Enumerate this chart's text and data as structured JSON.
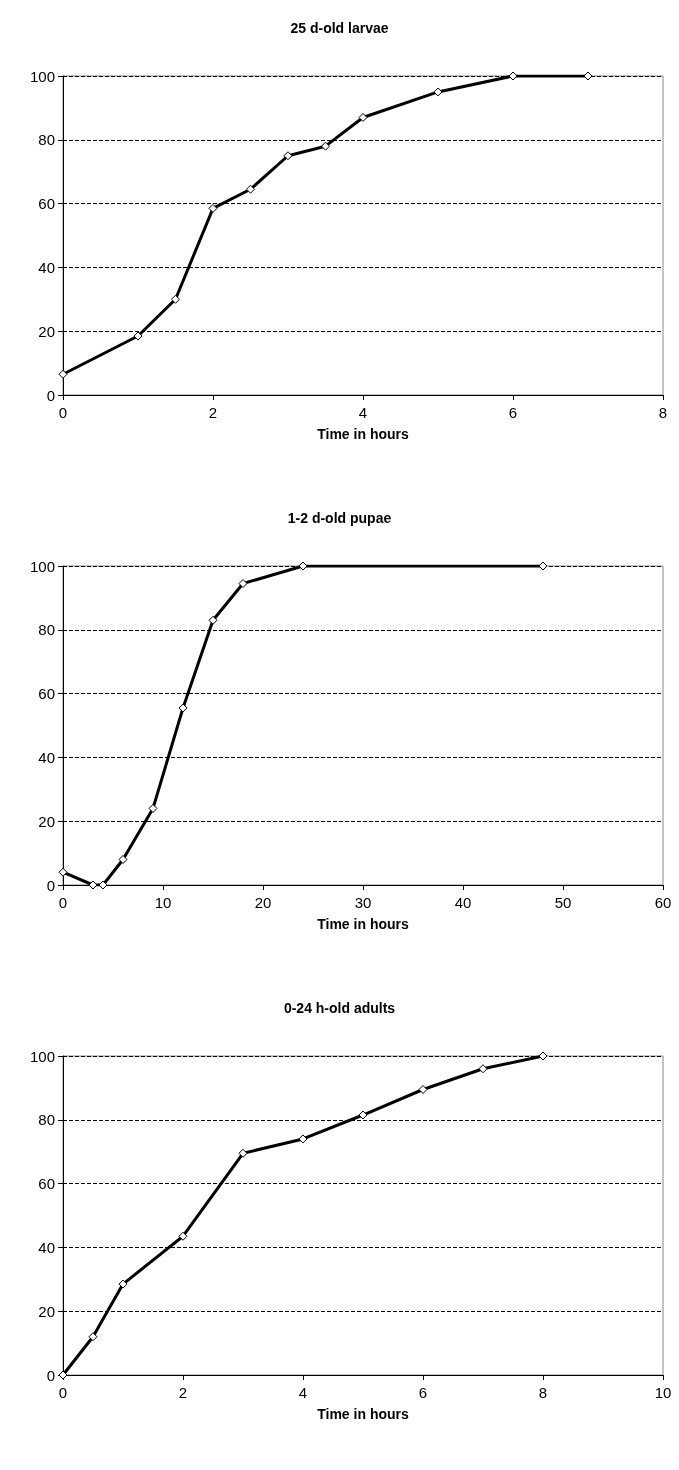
{
  "chart_data": [
    {
      "type": "line",
      "title": "25 d-old larvae",
      "xlabel": "Time in hours",
      "x": [
        0,
        1,
        1.5,
        2,
        2.5,
        3,
        3.5,
        4,
        5,
        6,
        7
      ],
      "series": [
        {
          "color": "#000000",
          "values": [
            6.5,
            18.5,
            30,
            58.5,
            64.5,
            75,
            78,
            87,
            95,
            100,
            100
          ]
        }
      ],
      "xlim": [
        0,
        8
      ],
      "xticks": [
        0,
        2,
        4,
        6,
        8
      ],
      "ylim": [
        0,
        100
      ],
      "yticks": [
        0,
        20,
        40,
        60,
        80,
        100
      ],
      "grid": "y",
      "marker": "diamond",
      "line_style": "solid"
    },
    {
      "type": "line",
      "title": "1-2 d-old pupae",
      "xlabel": "Time in hours",
      "x": [
        0,
        3,
        4,
        6,
        9,
        12,
        15,
        18,
        24,
        48
      ],
      "series": [
        {
          "color": "#000000",
          "values": [
            4,
            0,
            0,
            8,
            24,
            55.5,
            83,
            94.5,
            100,
            100
          ]
        }
      ],
      "xlim": [
        0,
        60
      ],
      "xticks": [
        0,
        10,
        20,
        30,
        40,
        50,
        60
      ],
      "ylim": [
        0,
        100
      ],
      "yticks": [
        0,
        20,
        40,
        60,
        80,
        100
      ],
      "grid": "y",
      "marker": "diamond",
      "line_style": "solid"
    },
    {
      "type": "line",
      "title": "0-24 h-old adults",
      "xlabel": "Time in hours",
      "x": [
        0,
        0.5,
        1,
        2,
        3,
        4,
        5,
        6,
        7,
        8
      ],
      "series": [
        {
          "color": "#000000",
          "values": [
            0,
            12,
            28.5,
            43.5,
            69.5,
            74,
            81.5,
            89.5,
            96,
            100
          ]
        }
      ],
      "xlim": [
        0,
        10
      ],
      "xticks": [
        0,
        2,
        4,
        6,
        8,
        10
      ],
      "ylim": [
        0,
        100
      ],
      "yticks": [
        0,
        20,
        40,
        60,
        80,
        100
      ],
      "grid": "y",
      "marker": "diamond",
      "line_style": "solid"
    }
  ]
}
